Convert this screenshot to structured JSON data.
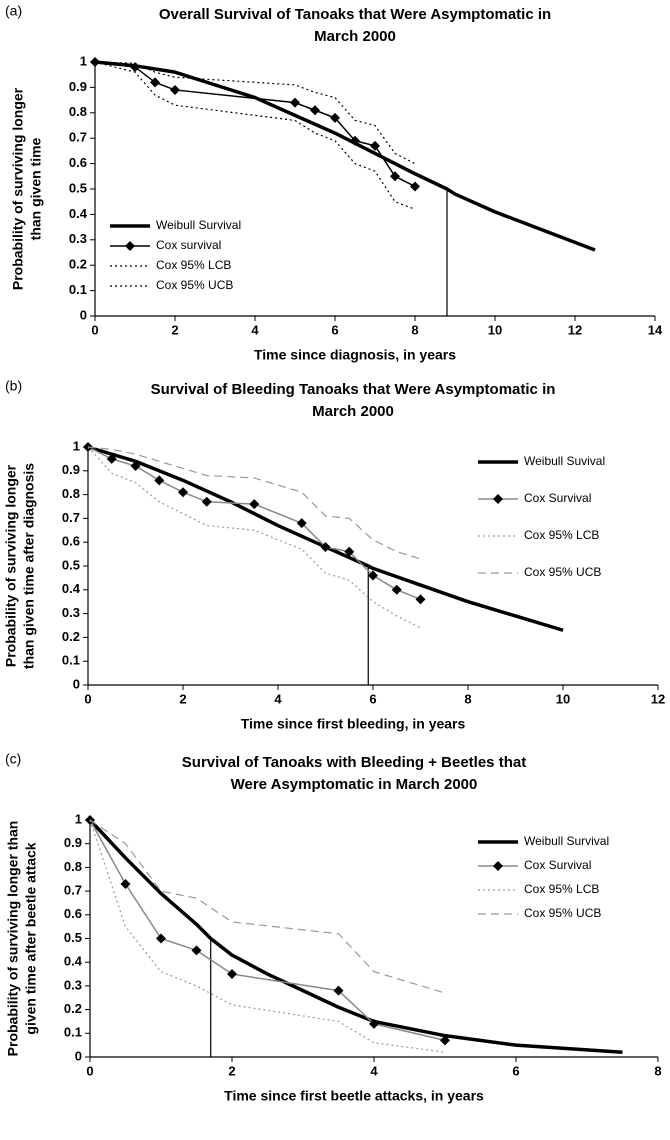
{
  "chart_data": [
    {
      "type": "line",
      "panel_label": "(a)",
      "title": [
        "Overall Survival of Tanoaks that Were Asymptomatic in",
        "March 2000"
      ],
      "xlabel": "Time since diagnosis, in years",
      "ylabel": [
        "Probability of surviving longer",
        "than given time"
      ],
      "xlim": [
        0,
        14
      ],
      "xticks": [
        0,
        2,
        4,
        6,
        8,
        10,
        12,
        14
      ],
      "ylim": [
        0,
        1
      ],
      "yticks": [
        0,
        0.1,
        0.2,
        0.3,
        0.4,
        0.5,
        0.6,
        0.7,
        0.8,
        0.9,
        1
      ],
      "legend_loc": "lower-left",
      "median_marker": {
        "x": 8.8,
        "y": 0.5
      },
      "series": [
        {
          "name": "Weibull Survival",
          "color": "#000000",
          "style": "thick",
          "x": [
            0,
            1,
            2,
            3,
            4,
            5,
            6,
            7,
            8,
            8.8,
            9,
            10,
            11,
            12,
            12.5
          ],
          "values": [
            1,
            0.985,
            0.96,
            0.91,
            0.86,
            0.79,
            0.72,
            0.64,
            0.56,
            0.5,
            0.48,
            0.41,
            0.35,
            0.29,
            0.26
          ]
        },
        {
          "name": "Cox survival",
          "color": "#000000",
          "style": "marker",
          "x": [
            0,
            1,
            1.5,
            2,
            5,
            5.5,
            6,
            6.5,
            7,
            7.5,
            8
          ],
          "values": [
            1,
            0.98,
            0.92,
            0.89,
            0.84,
            0.81,
            0.78,
            0.69,
            0.67,
            0.55,
            0.51
          ]
        },
        {
          "name": "Cox 95% LCB",
          "color": "#000000",
          "style": "dotted",
          "x": [
            0,
            1,
            1.5,
            2,
            5,
            5.5,
            6,
            6.5,
            7,
            7.5,
            8
          ],
          "values": [
            1,
            0.96,
            0.87,
            0.83,
            0.77,
            0.72,
            0.69,
            0.6,
            0.57,
            0.45,
            0.42
          ]
        },
        {
          "name": "Cox 95% UCB",
          "color": "#000000",
          "style": "dotted",
          "x": [
            0,
            1,
            1.5,
            2,
            5,
            5.5,
            6,
            6.5,
            7,
            7.5,
            8
          ],
          "values": [
            1,
            0.995,
            0.96,
            0.94,
            0.91,
            0.88,
            0.86,
            0.77,
            0.75,
            0.64,
            0.6
          ]
        }
      ]
    },
    {
      "type": "line",
      "panel_label": "(b)",
      "title": [
        "Survival of Bleeding Tanoaks that Were Asymptomatic in",
        "March 2000"
      ],
      "xlabel": "Time since first bleeding, in years",
      "ylabel": [
        "Probability of surviving longer",
        "than given time after diagnosis"
      ],
      "xlim": [
        0,
        12
      ],
      "xticks": [
        0,
        2,
        4,
        6,
        8,
        10,
        12
      ],
      "ylim": [
        0,
        1
      ],
      "yticks": [
        0,
        0.1,
        0.2,
        0.3,
        0.4,
        0.5,
        0.6,
        0.7,
        0.8,
        0.9,
        1
      ],
      "legend_loc": "upper-right",
      "median_marker": {
        "x": 5.9,
        "y": 0.5
      },
      "series": [
        {
          "name": "Weibull Suvival",
          "color": "#000000",
          "style": "thick",
          "x": [
            0,
            1,
            2,
            3,
            4,
            5,
            5.9,
            6,
            7,
            8,
            9,
            10
          ],
          "values": [
            1,
            0.94,
            0.86,
            0.77,
            0.67,
            0.58,
            0.5,
            0.49,
            0.42,
            0.35,
            0.29,
            0.23
          ]
        },
        {
          "name": "Cox Survival",
          "color": "#888888",
          "style": "marker",
          "x": [
            0,
            0.5,
            1,
            1.5,
            2,
            2.5,
            3.5,
            4.5,
            5,
            5.5,
            6,
            6.5,
            7
          ],
          "values": [
            1,
            0.95,
            0.92,
            0.86,
            0.81,
            0.77,
            0.76,
            0.68,
            0.58,
            0.56,
            0.46,
            0.4,
            0.36
          ]
        },
        {
          "name": "Cox 95% LCB",
          "color": "#999999",
          "style": "dotted",
          "x": [
            0,
            0.5,
            1,
            1.5,
            2,
            2.5,
            3.5,
            4.5,
            5,
            5.5,
            6,
            6.5,
            7
          ],
          "values": [
            1,
            0.89,
            0.85,
            0.77,
            0.72,
            0.67,
            0.65,
            0.57,
            0.47,
            0.44,
            0.35,
            0.29,
            0.24
          ]
        },
        {
          "name": "Cox 95% UCB",
          "color": "#999999",
          "style": "dashed",
          "x": [
            0,
            0.5,
            1,
            1.5,
            2,
            2.5,
            3.5,
            4.5,
            5,
            5.5,
            6,
            6.5,
            7
          ],
          "values": [
            1,
            0.99,
            0.97,
            0.94,
            0.91,
            0.88,
            0.87,
            0.81,
            0.71,
            0.7,
            0.61,
            0.56,
            0.53
          ]
        }
      ]
    },
    {
      "type": "line",
      "panel_label": "(c)",
      "title": [
        "Survival of Tanoaks with Bleeding + Beetles that",
        "Were Asymptomatic in March 2000"
      ],
      "xlabel": "Time since first beetle attacks, in years",
      "ylabel": [
        "Probability of surviving longer than",
        "given time after beetle attack"
      ],
      "xlim": [
        0,
        8
      ],
      "xticks": [
        0,
        2,
        4,
        6,
        8
      ],
      "ylim": [
        0,
        1
      ],
      "yticks": [
        0,
        0.1,
        0.2,
        0.3,
        0.4,
        0.5,
        0.6,
        0.7,
        0.8,
        0.9,
        1
      ],
      "legend_loc": "upper-right",
      "median_marker": {
        "x": 1.7,
        "y": 0.5
      },
      "series": [
        {
          "name": "Weibull Survival",
          "color": "#000000",
          "style": "thick",
          "x": [
            0,
            0.5,
            1,
            1.5,
            1.7,
            2,
            2.5,
            3,
            3.5,
            4,
            5,
            6,
            7,
            7.5
          ],
          "values": [
            1,
            0.84,
            0.69,
            0.56,
            0.5,
            0.43,
            0.35,
            0.28,
            0.21,
            0.15,
            0.09,
            0.05,
            0.03,
            0.02
          ]
        },
        {
          "name": "Cox Survival",
          "color": "#888888",
          "style": "marker",
          "x": [
            0,
            0.5,
            1,
            1.5,
            2,
            3.5,
            4,
            5
          ],
          "values": [
            1,
            0.73,
            0.5,
            0.45,
            0.35,
            0.28,
            0.14,
            0.07
          ]
        },
        {
          "name": "Cox 95% LCB",
          "color": "#999999",
          "style": "dotted",
          "x": [
            0,
            0.5,
            1,
            1.5,
            2,
            3.5,
            4,
            5
          ],
          "values": [
            1,
            0.55,
            0.36,
            0.3,
            0.22,
            0.15,
            0.06,
            0.02
          ]
        },
        {
          "name": "Cox 95% UCB",
          "color": "#999999",
          "style": "dashed",
          "x": [
            0,
            0.5,
            1,
            1.5,
            2,
            3.5,
            4,
            5
          ],
          "values": [
            1,
            0.9,
            0.7,
            0.67,
            0.57,
            0.52,
            0.36,
            0.27
          ]
        }
      ]
    }
  ]
}
